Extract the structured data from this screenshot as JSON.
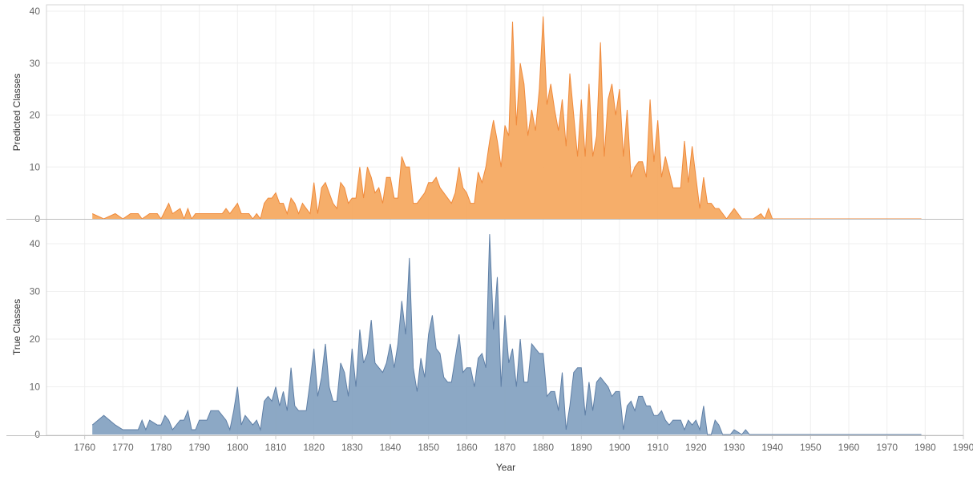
{
  "chart_data": {
    "type": "area",
    "xlabel": "Year",
    "xlim": [
      1750,
      1990
    ],
    "xticks": [
      1760,
      1770,
      1780,
      1790,
      1800,
      1810,
      1820,
      1830,
      1840,
      1850,
      1860,
      1870,
      1880,
      1890,
      1900,
      1910,
      1920,
      1930,
      1940,
      1950,
      1960,
      1970,
      1980,
      1990
    ],
    "grid": true,
    "panels": [
      {
        "name": "predicted",
        "ylabel": "Predicted Classes",
        "ylim": [
          0,
          40
        ],
        "yticks": [
          0,
          10,
          20,
          30,
          40
        ],
        "color": "#f5a55a",
        "line_color": "#ef8a3c",
        "points": [
          [
            1762,
            1
          ],
          [
            1765,
            0
          ],
          [
            1768,
            1
          ],
          [
            1770,
            0
          ],
          [
            1772,
            1
          ],
          [
            1774,
            1
          ],
          [
            1775,
            0
          ],
          [
            1777,
            1
          ],
          [
            1779,
            1
          ],
          [
            1780,
            0
          ],
          [
            1782,
            3
          ],
          [
            1783,
            1
          ],
          [
            1785,
            2
          ],
          [
            1786,
            0
          ],
          [
            1787,
            2
          ],
          [
            1788,
            0
          ],
          [
            1789,
            1
          ],
          [
            1796,
            1
          ],
          [
            1797,
            2
          ],
          [
            1798,
            1
          ],
          [
            1800,
            3
          ],
          [
            1801,
            1
          ],
          [
            1803,
            1
          ],
          [
            1804,
            0
          ],
          [
            1805,
            1
          ],
          [
            1806,
            0
          ],
          [
            1807,
            3
          ],
          [
            1808,
            4
          ],
          [
            1809,
            4
          ],
          [
            1810,
            5
          ],
          [
            1811,
            3
          ],
          [
            1812,
            3
          ],
          [
            1813,
            1
          ],
          [
            1814,
            4
          ],
          [
            1815,
            3
          ],
          [
            1816,
            1
          ],
          [
            1817,
            3
          ],
          [
            1818,
            2
          ],
          [
            1819,
            1
          ],
          [
            1820,
            7
          ],
          [
            1821,
            1
          ],
          [
            1822,
            6
          ],
          [
            1823,
            7
          ],
          [
            1824,
            5
          ],
          [
            1825,
            3
          ],
          [
            1826,
            2
          ],
          [
            1827,
            7
          ],
          [
            1828,
            6
          ],
          [
            1829,
            3
          ],
          [
            1830,
            4
          ],
          [
            1831,
            4
          ],
          [
            1832,
            10
          ],
          [
            1833,
            4
          ],
          [
            1834,
            10
          ],
          [
            1835,
            8
          ],
          [
            1836,
            5
          ],
          [
            1837,
            6
          ],
          [
            1838,
            3
          ],
          [
            1839,
            8
          ],
          [
            1840,
            8
          ],
          [
            1841,
            4
          ],
          [
            1842,
            4
          ],
          [
            1843,
            12
          ],
          [
            1844,
            10
          ],
          [
            1845,
            10
          ],
          [
            1846,
            3
          ],
          [
            1847,
            3
          ],
          [
            1848,
            4
          ],
          [
            1849,
            5
          ],
          [
            1850,
            7
          ],
          [
            1851,
            7
          ],
          [
            1852,
            8
          ],
          [
            1853,
            6
          ],
          [
            1854,
            5
          ],
          [
            1855,
            4
          ],
          [
            1856,
            3
          ],
          [
            1857,
            5
          ],
          [
            1858,
            10
          ],
          [
            1859,
            6
          ],
          [
            1860,
            5
          ],
          [
            1861,
            3
          ],
          [
            1862,
            3
          ],
          [
            1863,
            9
          ],
          [
            1864,
            7
          ],
          [
            1865,
            10
          ],
          [
            1866,
            15
          ],
          [
            1867,
            19
          ],
          [
            1868,
            15
          ],
          [
            1869,
            10
          ],
          [
            1870,
            18
          ],
          [
            1871,
            16
          ],
          [
            1872,
            38
          ],
          [
            1873,
            18
          ],
          [
            1874,
            30
          ],
          [
            1875,
            26
          ],
          [
            1876,
            16
          ],
          [
            1877,
            21
          ],
          [
            1878,
            17
          ],
          [
            1879,
            25
          ],
          [
            1880,
            39
          ],
          [
            1881,
            22
          ],
          [
            1882,
            26
          ],
          [
            1883,
            21
          ],
          [
            1884,
            17
          ],
          [
            1885,
            23
          ],
          [
            1886,
            14
          ],
          [
            1887,
            28
          ],
          [
            1888,
            20
          ],
          [
            1889,
            12
          ],
          [
            1890,
            23
          ],
          [
            1891,
            12
          ],
          [
            1892,
            26
          ],
          [
            1893,
            12
          ],
          [
            1894,
            16
          ],
          [
            1895,
            34
          ],
          [
            1896,
            12
          ],
          [
            1897,
            23
          ],
          [
            1898,
            26
          ],
          [
            1899,
            20
          ],
          [
            1900,
            25
          ],
          [
            1901,
            12
          ],
          [
            1902,
            21
          ],
          [
            1903,
            8
          ],
          [
            1904,
            10
          ],
          [
            1905,
            11
          ],
          [
            1906,
            11
          ],
          [
            1907,
            8
          ],
          [
            1908,
            23
          ],
          [
            1909,
            11
          ],
          [
            1910,
            19
          ],
          [
            1911,
            8
          ],
          [
            1912,
            12
          ],
          [
            1913,
            9
          ],
          [
            1914,
            6
          ],
          [
            1915,
            6
          ],
          [
            1916,
            6
          ],
          [
            1917,
            15
          ],
          [
            1918,
            7
          ],
          [
            1919,
            14
          ],
          [
            1920,
            8
          ],
          [
            1921,
            2
          ],
          [
            1922,
            8
          ],
          [
            1923,
            3
          ],
          [
            1924,
            3
          ],
          [
            1925,
            2
          ],
          [
            1926,
            2
          ],
          [
            1927,
            1
          ],
          [
            1928,
            0
          ],
          [
            1930,
            2
          ],
          [
            1931,
            1
          ],
          [
            1932,
            0
          ],
          [
            1935,
            0
          ],
          [
            1937,
            1
          ],
          [
            1938,
            0
          ],
          [
            1939,
            2
          ],
          [
            1940,
            0
          ],
          [
            1979,
            0
          ]
        ]
      },
      {
        "name": "true",
        "ylabel": "True Classes",
        "ylim": [
          0,
          40
        ],
        "yticks": [
          0,
          10,
          20,
          30,
          40
        ],
        "color": "#7f9fbf",
        "line_color": "#5f7fa6",
        "points": [
          [
            1762,
            2
          ],
          [
            1765,
            4
          ],
          [
            1768,
            2
          ],
          [
            1770,
            1
          ],
          [
            1774,
            1
          ],
          [
            1775,
            3
          ],
          [
            1776,
            1
          ],
          [
            1777,
            3
          ],
          [
            1779,
            2
          ],
          [
            1780,
            2
          ],
          [
            1781,
            4
          ],
          [
            1782,
            3
          ],
          [
            1783,
            1
          ],
          [
            1785,
            3
          ],
          [
            1786,
            3
          ],
          [
            1787,
            5
          ],
          [
            1788,
            1
          ],
          [
            1789,
            1
          ],
          [
            1790,
            3
          ],
          [
            1792,
            3
          ],
          [
            1793,
            5
          ],
          [
            1795,
            5
          ],
          [
            1797,
            3
          ],
          [
            1798,
            1
          ],
          [
            1799,
            5
          ],
          [
            1800,
            10
          ],
          [
            1801,
            2
          ],
          [
            1802,
            4
          ],
          [
            1803,
            3
          ],
          [
            1804,
            2
          ],
          [
            1805,
            3
          ],
          [
            1806,
            1
          ],
          [
            1807,
            7
          ],
          [
            1808,
            8
          ],
          [
            1809,
            7
          ],
          [
            1810,
            10
          ],
          [
            1811,
            6
          ],
          [
            1812,
            9
          ],
          [
            1813,
            5
          ],
          [
            1814,
            14
          ],
          [
            1815,
            6
          ],
          [
            1816,
            5
          ],
          [
            1818,
            5
          ],
          [
            1819,
            11
          ],
          [
            1820,
            18
          ],
          [
            1821,
            8
          ],
          [
            1822,
            12
          ],
          [
            1823,
            19
          ],
          [
            1824,
            10
          ],
          [
            1825,
            7
          ],
          [
            1826,
            7
          ],
          [
            1827,
            15
          ],
          [
            1828,
            13
          ],
          [
            1829,
            8
          ],
          [
            1830,
            18
          ],
          [
            1831,
            10
          ],
          [
            1832,
            22
          ],
          [
            1833,
            15
          ],
          [
            1834,
            17
          ],
          [
            1835,
            24
          ],
          [
            1836,
            15
          ],
          [
            1837,
            14
          ],
          [
            1838,
            13
          ],
          [
            1839,
            15
          ],
          [
            1840,
            19
          ],
          [
            1841,
            14
          ],
          [
            1842,
            19
          ],
          [
            1843,
            28
          ],
          [
            1844,
            21
          ],
          [
            1845,
            37
          ],
          [
            1846,
            14
          ],
          [
            1847,
            9
          ],
          [
            1848,
            16
          ],
          [
            1849,
            12
          ],
          [
            1850,
            21
          ],
          [
            1851,
            25
          ],
          [
            1852,
            18
          ],
          [
            1853,
            17
          ],
          [
            1854,
            12
          ],
          [
            1855,
            11
          ],
          [
            1856,
            11
          ],
          [
            1857,
            16
          ],
          [
            1858,
            21
          ],
          [
            1859,
            13
          ],
          [
            1860,
            14
          ],
          [
            1861,
            14
          ],
          [
            1862,
            10
          ],
          [
            1863,
            16
          ],
          [
            1864,
            17
          ],
          [
            1865,
            14
          ],
          [
            1866,
            42
          ],
          [
            1867,
            22
          ],
          [
            1868,
            33
          ],
          [
            1869,
            10
          ],
          [
            1870,
            25
          ],
          [
            1871,
            15
          ],
          [
            1872,
            18
          ],
          [
            1873,
            10
          ],
          [
            1874,
            20
          ],
          [
            1875,
            11
          ],
          [
            1876,
            11
          ],
          [
            1877,
            19
          ],
          [
            1878,
            18
          ],
          [
            1879,
            17
          ],
          [
            1880,
            17
          ],
          [
            1881,
            8
          ],
          [
            1882,
            9
          ],
          [
            1883,
            9
          ],
          [
            1884,
            5
          ],
          [
            1885,
            13
          ],
          [
            1886,
            1
          ],
          [
            1887,
            6
          ],
          [
            1888,
            13
          ],
          [
            1889,
            14
          ],
          [
            1890,
            14
          ],
          [
            1891,
            4
          ],
          [
            1892,
            11
          ],
          [
            1893,
            5
          ],
          [
            1894,
            11
          ],
          [
            1895,
            12
          ],
          [
            1896,
            11
          ],
          [
            1897,
            10
          ],
          [
            1898,
            8
          ],
          [
            1899,
            9
          ],
          [
            1900,
            9
          ],
          [
            1901,
            1
          ],
          [
            1902,
            6
          ],
          [
            1903,
            7
          ],
          [
            1904,
            5
          ],
          [
            1905,
            8
          ],
          [
            1906,
            8
          ],
          [
            1907,
            6
          ],
          [
            1908,
            6
          ],
          [
            1909,
            4
          ],
          [
            1910,
            4
          ],
          [
            1911,
            5
          ],
          [
            1912,
            3
          ],
          [
            1913,
            2
          ],
          [
            1914,
            3
          ],
          [
            1915,
            3
          ],
          [
            1916,
            3
          ],
          [
            1917,
            1
          ],
          [
            1918,
            3
          ],
          [
            1919,
            2
          ],
          [
            1920,
            3
          ],
          [
            1921,
            1
          ],
          [
            1922,
            6
          ],
          [
            1923,
            0
          ],
          [
            1924,
            0
          ],
          [
            1925,
            3
          ],
          [
            1926,
            2
          ],
          [
            1927,
            0
          ],
          [
            1929,
            0
          ],
          [
            1930,
            1
          ],
          [
            1931,
            0.5
          ],
          [
            1932,
            0
          ],
          [
            1933,
            1
          ],
          [
            1934,
            0
          ],
          [
            1979,
            0
          ]
        ]
      }
    ]
  }
}
